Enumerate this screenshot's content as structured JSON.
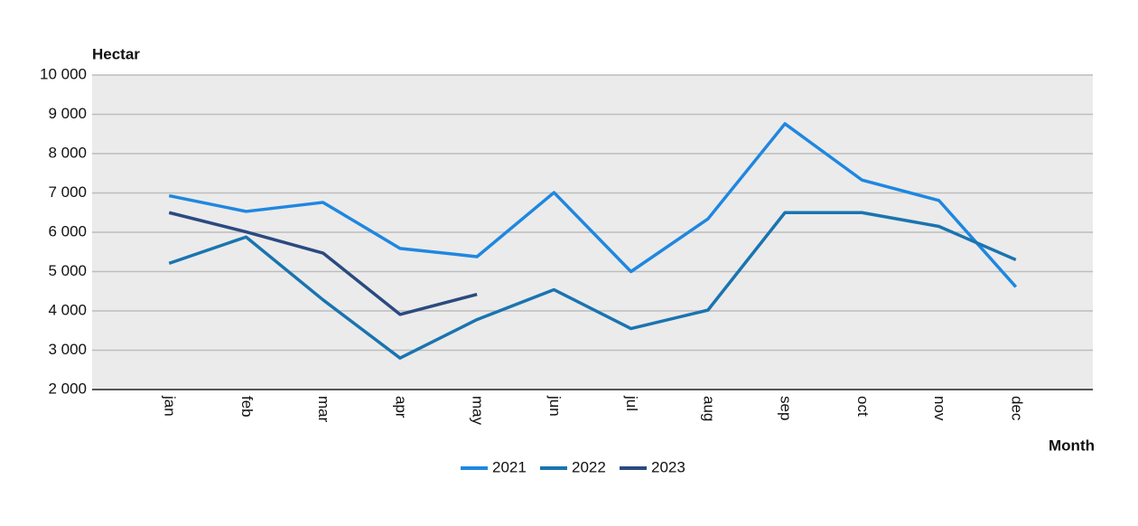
{
  "chart_data": {
    "type": "line",
    "y_label": "Hectar",
    "x_label": "Month",
    "categories": [
      "jan",
      "feb",
      "mar",
      "apr",
      "may",
      "jun",
      "jul",
      "aug",
      "sep",
      "oct",
      "nov",
      "dec"
    ],
    "series": [
      {
        "name": "2021",
        "color": "#1f87e0",
        "values": [
          6930,
          6530,
          6760,
          5590,
          5380,
          7010,
          5000,
          6340,
          8760,
          7330,
          6810,
          4610
        ]
      },
      {
        "name": "2022",
        "color": "#1a74b0",
        "values": [
          5210,
          5880,
          4280,
          2800,
          3780,
          4540,
          3550,
          4020,
          6500,
          6500,
          6150,
          5300
        ]
      },
      {
        "name": "2023",
        "color": "#2b4a80",
        "values": [
          6500,
          6010,
          5470,
          3910,
          4420,
          null,
          null,
          null,
          null,
          null,
          null,
          null
        ]
      }
    ],
    "ylim": [
      2000,
      10000
    ],
    "yticks": [
      {
        "value": 2000,
        "label": "2 000"
      },
      {
        "value": 3000,
        "label": "3 000"
      },
      {
        "value": 4000,
        "label": "4 000"
      },
      {
        "value": 5000,
        "label": "5 000"
      },
      {
        "value": 6000,
        "label": "6 000"
      },
      {
        "value": 7000,
        "label": "7 000"
      },
      {
        "value": 8000,
        "label": "8 000"
      },
      {
        "value": 9000,
        "label": "9 000"
      },
      {
        "value": 10000,
        "label": "10 000"
      }
    ],
    "grid": true,
    "legend": "bottom"
  }
}
